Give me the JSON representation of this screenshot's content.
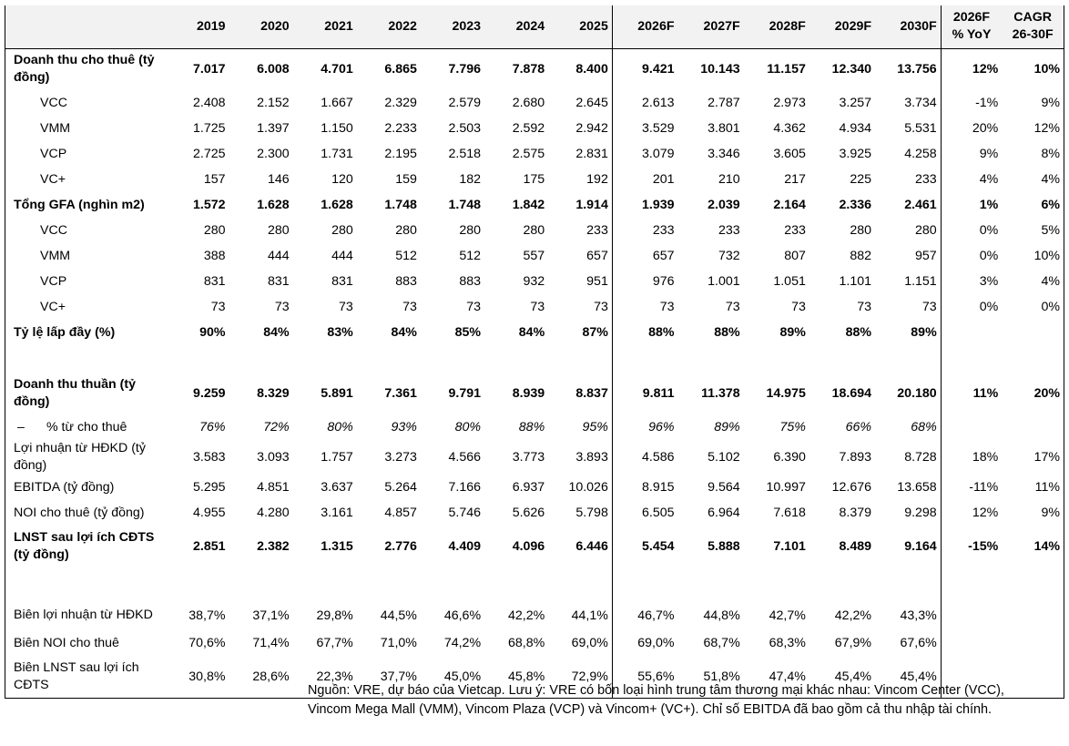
{
  "header": {
    "label": "",
    "years": [
      "2019",
      "2020",
      "2021",
      "2022",
      "2023",
      "2024",
      "2025",
      "2026F",
      "2027F",
      "2028F",
      "2029F",
      "2030F"
    ],
    "yoy_line1": "2026F",
    "yoy_line2": "% YoY",
    "cagr_line1": "CAGR",
    "cagr_line2": "26-30F"
  },
  "rows": [
    {
      "label": "Doanh thu cho thuê (tỷ đồng)",
      "values": [
        "7.017",
        "6.008",
        "4.701",
        "6.865",
        "7.796",
        "7.878",
        "8.400",
        "9.421",
        "10.143",
        "11.157",
        "12.340",
        "13.756"
      ],
      "yoy": "12%",
      "cagr": "10%"
    },
    {
      "label": "VCC",
      "values": [
        "2.408",
        "2.152",
        "1.667",
        "2.329",
        "2.579",
        "2.680",
        "2.645",
        "2.613",
        "2.787",
        "2.973",
        "3.257",
        "3.734"
      ],
      "yoy": "-1%",
      "cagr": "9%"
    },
    {
      "label": "VMM",
      "values": [
        "1.725",
        "1.397",
        "1.150",
        "2.233",
        "2.503",
        "2.592",
        "2.942",
        "3.529",
        "3.801",
        "4.362",
        "4.934",
        "5.531"
      ],
      "yoy": "20%",
      "cagr": "12%"
    },
    {
      "label": "VCP",
      "values": [
        "2.725",
        "2.300",
        "1.731",
        "2.195",
        "2.518",
        "2.575",
        "2.831",
        "3.079",
        "3.346",
        "3.605",
        "3.925",
        "4.258"
      ],
      "yoy": "9%",
      "cagr": "8%"
    },
    {
      "label": "VC+",
      "values": [
        "157",
        "146",
        "120",
        "159",
        "182",
        "175",
        "192",
        "201",
        "210",
        "217",
        "225",
        "233"
      ],
      "yoy": "4%",
      "cagr": "4%"
    },
    {
      "label": "Tổng GFA (nghìn m2)",
      "values": [
        "1.572",
        "1.628",
        "1.628",
        "1.748",
        "1.748",
        "1.842",
        "1.914",
        "1.939",
        "2.039",
        "2.164",
        "2.336",
        "2.461"
      ],
      "yoy": "1%",
      "cagr": "6%"
    },
    {
      "label": "VCC",
      "values": [
        "280",
        "280",
        "280",
        "280",
        "280",
        "280",
        "233",
        "233",
        "233",
        "233",
        "280",
        "280"
      ],
      "yoy": "0%",
      "cagr": "5%"
    },
    {
      "label": "VMM",
      "values": [
        "388",
        "444",
        "444",
        "512",
        "512",
        "557",
        "657",
        "657",
        "732",
        "807",
        "882",
        "957"
      ],
      "yoy": "0%",
      "cagr": "10%"
    },
    {
      "label": "VCP",
      "values": [
        "831",
        "831",
        "831",
        "883",
        "883",
        "932",
        "951",
        "976",
        "1.001",
        "1.051",
        "1.101",
        "1.151"
      ],
      "yoy": "3%",
      "cagr": "4%"
    },
    {
      "label": "VC+",
      "values": [
        "73",
        "73",
        "73",
        "73",
        "73",
        "73",
        "73",
        "73",
        "73",
        "73",
        "73",
        "73"
      ],
      "yoy": "0%",
      "cagr": "0%"
    },
    {
      "label": "Tỷ lệ lấp đầy (%)",
      "values": [
        "90%",
        "84%",
        "83%",
        "84%",
        "85%",
        "84%",
        "87%",
        "88%",
        "88%",
        "89%",
        "88%",
        "89%"
      ],
      "yoy": "",
      "cagr": ""
    },
    {
      "label": "Doanh thu thuần (tỷ đồng)",
      "values": [
        "9.259",
        "8.329",
        "5.891",
        "7.361",
        "9.791",
        "8.939",
        "8.837",
        "9.811",
        "11.378",
        "14.975",
        "18.694",
        "20.180"
      ],
      "yoy": "11%",
      "cagr": "20%"
    },
    {
      "label": "% từ cho thuê",
      "dash": "–",
      "values": [
        "76%",
        "72%",
        "80%",
        "93%",
        "80%",
        "88%",
        "95%",
        "96%",
        "89%",
        "75%",
        "66%",
        "68%"
      ],
      "yoy": "",
      "cagr": ""
    },
    {
      "label": "Lợi nhuận từ HĐKD (tỷ đồng)",
      "values": [
        "3.583",
        "3.093",
        "1.757",
        "3.273",
        "4.566",
        "3.773",
        "3.893",
        "4.586",
        "5.102",
        "6.390",
        "7.893",
        "8.728"
      ],
      "yoy": "18%",
      "cagr": "17%"
    },
    {
      "label": "EBITDA (tỷ đồng)",
      "values": [
        "5.295",
        "4.851",
        "3.637",
        "5.264",
        "7.166",
        "6.937",
        "10.026",
        "8.915",
        "9.564",
        "10.997",
        "12.676",
        "13.658"
      ],
      "yoy": "-11%",
      "cagr": "11%"
    },
    {
      "label": "NOI cho thuê (tỷ đồng)",
      "values": [
        "4.955",
        "4.280",
        "3.161",
        "4.857",
        "5.746",
        "5.626",
        "5.798",
        "6.505",
        "6.964",
        "7.618",
        "8.379",
        "9.298"
      ],
      "yoy": "12%",
      "cagr": "9%"
    },
    {
      "label": "LNST sau lợi ích CĐTS (tỷ đồng)",
      "values": [
        "2.851",
        "2.382",
        "1.315",
        "2.776",
        "4.409",
        "4.096",
        "6.446",
        "5.454",
        "5.888",
        "7.101",
        "8.489",
        "9.164"
      ],
      "yoy": "-15%",
      "cagr": "14%"
    },
    {
      "label": "Biên lợi nhuận từ HĐKD",
      "values": [
        "38,7%",
        "37,1%",
        "29,8%",
        "44,5%",
        "46,6%",
        "42,2%",
        "44,1%",
        "46,7%",
        "44,8%",
        "42,7%",
        "42,2%",
        "43,3%"
      ],
      "yoy": "",
      "cagr": ""
    },
    {
      "label": "Biên NOI cho thuê",
      "values": [
        "70,6%",
        "71,4%",
        "67,7%",
        "71,0%",
        "74,2%",
        "68,8%",
        "69,0%",
        "69,0%",
        "68,7%",
        "68,3%",
        "67,9%",
        "67,6%"
      ],
      "yoy": "",
      "cagr": ""
    },
    {
      "label": "Biên LNST sau lợi ích CĐTS",
      "values": [
        "30,8%",
        "28,6%",
        "22,3%",
        "37,7%",
        "45,0%",
        "45,8%",
        "72,9%",
        "55,6%",
        "51,8%",
        "47,4%",
        "45,4%",
        "45,4%"
      ],
      "yoy": "",
      "cagr": ""
    }
  ],
  "footnote": "Nguồn: VRE, dự báo của Vietcap. Lưu ý: VRE có bốn loại hình trung tâm thương mại khác nhau: Vincom Center (VCC), Vincom Mega Mall (VMM), Vincom Plaza (VCP) và Vincom+ (VC+). Chỉ số EBITDA đã bao gồm cả thu nhập tài chính."
}
